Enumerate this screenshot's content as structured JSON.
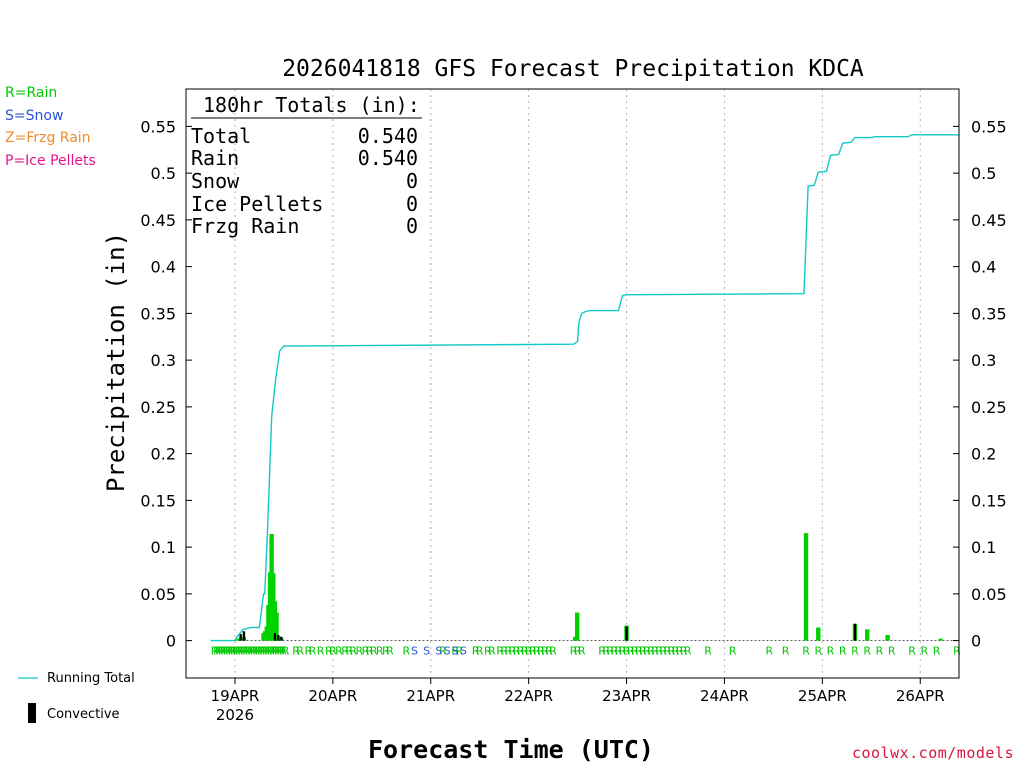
{
  "title": "2026041818 GFS Forecast Precipitation KDCA",
  "ptype_legend": [
    {
      "label": "R=Rain",
      "color": "#00c800"
    },
    {
      "label": "S=Snow",
      "color": "#2850d8"
    },
    {
      "label": "Z=Frzg Rain",
      "color": "#f08c28"
    },
    {
      "label": "P=Ice Pellets",
      "color": "#e6148c"
    }
  ],
  "totals": {
    "heading": "180hr Totals (in):",
    "rows": [
      {
        "label": "Total",
        "value": "0.540"
      },
      {
        "label": "Rain",
        "value": "0.540"
      },
      {
        "label": "Snow",
        "value": "0"
      },
      {
        "label": "Ice Pellets",
        "value": "0"
      },
      {
        "label": "Frzg Rain",
        "value": "0"
      }
    ]
  },
  "series_legend": {
    "running_total": "Running Total",
    "convective": "Convective"
  },
  "credit": "coolwx.com/models",
  "colors": {
    "running_total": "#14c8c8",
    "rain_bar": "#00d200",
    "convective_bar": "#000000",
    "rain_label": "#00c800",
    "snow_label": "#2850d8",
    "grid": "#b4b4b4"
  },
  "chart_data": {
    "type": "bar",
    "title": "2026041818 GFS Forecast Precipitation KDCA",
    "xlabel": "Forecast Time (UTC)",
    "ylabel": "Precipitation (in)",
    "ylim": [
      -0.04,
      0.59
    ],
    "xlim_hours": [
      -6,
      183.5
    ],
    "x_unit": "forecast hours from 2026-04-18 18Z",
    "yticks": [
      0,
      0.05,
      0.1,
      0.15,
      0.2,
      0.25,
      0.3,
      0.35,
      0.4,
      0.45,
      0.5,
      0.55
    ],
    "ytick_labels": [
      "0",
      "0.05",
      "0.1",
      "0.15",
      "0.2",
      "0.25",
      "0.3",
      "0.35",
      "0.4",
      "0.45",
      "0.5",
      "0.55"
    ],
    "xticks": [
      {
        "hour": 6,
        "label": "19APR",
        "sublabel": "2026"
      },
      {
        "hour": 30,
        "label": "20APR"
      },
      {
        "hour": 54,
        "label": "21APR"
      },
      {
        "hour": 78,
        "label": "22APR"
      },
      {
        "hour": 102,
        "label": "23APR"
      },
      {
        "hour": 126,
        "label": "24APR"
      },
      {
        "hour": 150,
        "label": "25APR"
      },
      {
        "hour": 174,
        "label": "26APR"
      }
    ],
    "grid": "dotted vertical at day boundaries",
    "running_total": {
      "name": "Running Total",
      "x": [
        0,
        6,
        6.5,
        8,
        10,
        11,
        12,
        13,
        13.3,
        14,
        15,
        16,
        17,
        18,
        89,
        90,
        90.3,
        91,
        92,
        93,
        94,
        95,
        96,
        100,
        101,
        102,
        145.5,
        146.5,
        148,
        149,
        151,
        152,
        154,
        155,
        157,
        158,
        162,
        163,
        171,
        172,
        183.5
      ],
      "y": [
        0,
        0,
        0.004,
        0.012,
        0.014,
        0.014,
        0.014,
        0.05,
        0.05,
        0.12,
        0.24,
        0.28,
        0.31,
        0.315,
        0.317,
        0.32,
        0.34,
        0.35,
        0.352,
        0.353,
        0.353,
        0.353,
        0.353,
        0.353,
        0.369,
        0.37,
        0.371,
        0.486,
        0.487,
        0.501,
        0.502,
        0.519,
        0.52,
        0.532,
        0.533,
        0.538,
        0.538,
        0.539,
        0.539,
        0.541,
        0.541
      ]
    },
    "precip_bars": {
      "name": "Precipitation",
      "x": [
        6.6,
        7.4,
        8.2,
        13,
        13.4,
        13.8,
        14.2,
        14.6,
        15,
        15.4,
        15.8,
        16.2,
        16.6,
        17,
        17.4,
        89.4,
        89.9,
        102,
        146,
        149,
        158,
        161,
        166,
        179
      ],
      "values": [
        0.002,
        0.003,
        0.004,
        0.008,
        0.01,
        0.015,
        0.038,
        0.073,
        0.114,
        0.072,
        0.042,
        0.03,
        0.005,
        0.004,
        0.002,
        0.004,
        0.03,
        0.016,
        0.115,
        0.014,
        0.018,
        0.012,
        0.006,
        0.002
      ]
    },
    "convective_bars": {
      "name": "Convective",
      "x": [
        7.4,
        8.2,
        15.8,
        16.6,
        17.4,
        102,
        158
      ],
      "values": [
        0.007,
        0.01,
        0.008,
        0.006,
        0.004,
        0.015,
        0.018
      ]
    },
    "ptype_row": {
      "R": [
        1,
        1.6,
        2.2,
        2.8,
        3.4,
        4,
        4.6,
        5.2,
        5.8,
        6.4,
        7,
        7.6,
        8.2,
        8.8,
        9.4,
        10,
        10.6,
        11.2,
        11.8,
        12.4,
        13,
        13.6,
        14.2,
        14.8,
        15.4,
        16,
        16.6,
        17.2,
        17.8,
        18.4,
        21,
        22,
        24,
        25,
        27,
        29,
        30,
        31.5,
        33,
        34,
        35,
        36.5,
        38,
        39,
        40,
        41.5,
        43,
        44,
        48,
        57,
        60,
        61,
        65,
        66,
        68,
        69,
        71,
        72,
        73,
        74,
        75,
        76,
        77,
        78,
        79,
        80,
        81,
        82,
        83,
        84,
        89,
        90,
        91,
        96,
        97,
        98,
        99,
        100,
        101,
        102,
        103,
        104,
        105,
        106,
        107,
        108,
        109,
        110,
        111,
        112,
        113,
        114,
        115,
        116,
        117,
        122,
        128,
        137,
        141,
        146,
        149,
        152,
        155,
        158,
        161,
        164,
        167,
        172,
        175,
        178,
        183
      ],
      "S": [
        50,
        53,
        56,
        58,
        60,
        62
      ]
    }
  }
}
